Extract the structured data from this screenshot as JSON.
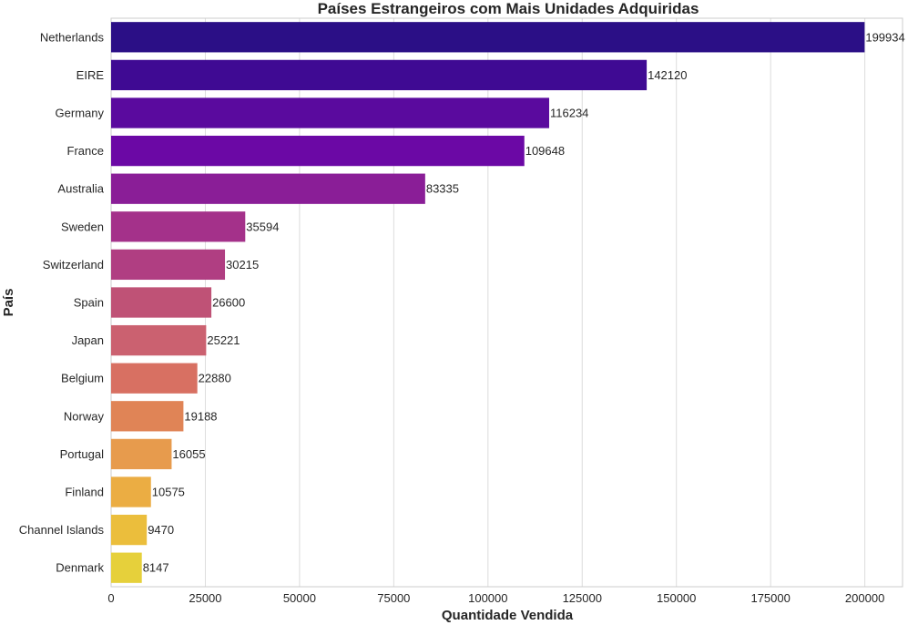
{
  "chart_data": {
    "type": "bar",
    "orientation": "horizontal",
    "title": "Países Estrangeiros com Mais Unidades Adquiridas",
    "xlabel": "Quantidade Vendida",
    "ylabel": "País",
    "categories": [
      "Netherlands",
      "EIRE",
      "Germany",
      "France",
      "Australia",
      "Sweden",
      "Switzerland",
      "Spain",
      "Japan",
      "Belgium",
      "Norway",
      "Portugal",
      "Finland",
      "Channel Islands",
      "Denmark"
    ],
    "values": [
      199934,
      142120,
      116234,
      109648,
      83335,
      35594,
      30215,
      26600,
      25221,
      22880,
      19188,
      16055,
      10575,
      9470,
      8147
    ],
    "value_labels": [
      "199934",
      "142120",
      "116234",
      "109648",
      "83335",
      "35594",
      "30215",
      "26600",
      "25221",
      "22880",
      "19188",
      "16055",
      "10575",
      "9470",
      "8147"
    ],
    "xlim": [
      0,
      210000
    ],
    "xticks": [
      0,
      25000,
      50000,
      75000,
      100000,
      125000,
      150000,
      175000,
      200000
    ],
    "xtick_labels": [
      "0",
      "25000",
      "50000",
      "75000",
      "100000",
      "125000",
      "150000",
      "175000",
      "200000"
    ],
    "grid": "vertical",
    "colors": [
      "#2b0f86",
      "#3f0a93",
      "#5a0a9e",
      "#6b08a5",
      "#8a1e97",
      "#a4318a",
      "#b03e82",
      "#bf5276",
      "#cb6170",
      "#d87062",
      "#e08456",
      "#e79b4d",
      "#ebad43",
      "#ebbe3c",
      "#e6d03b"
    ]
  }
}
